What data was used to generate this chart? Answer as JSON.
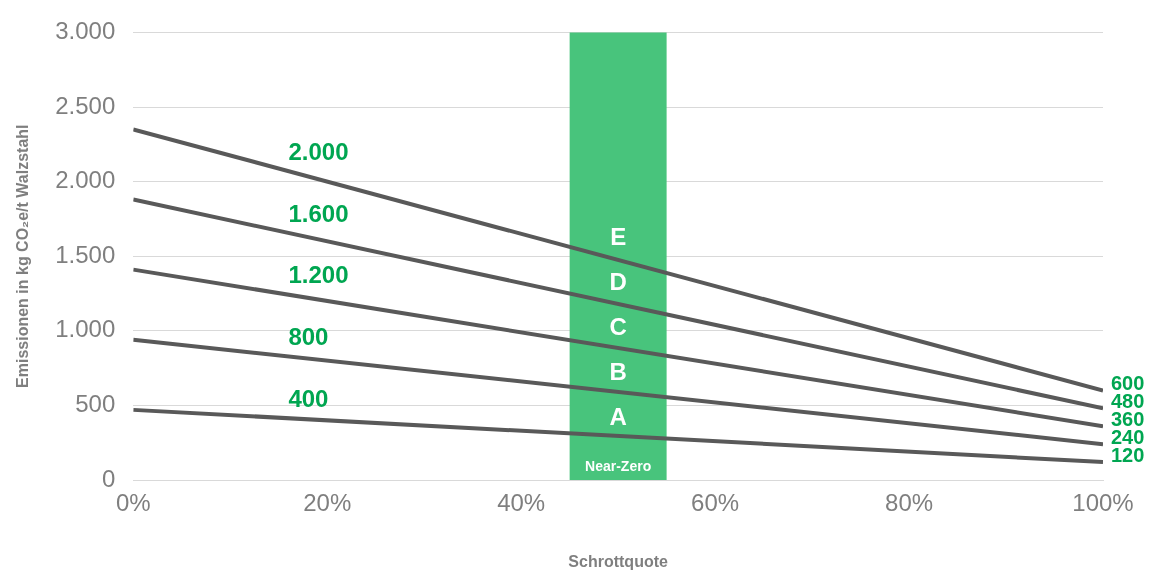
{
  "chart_data": {
    "type": "line",
    "xlabel": "Schrottquote",
    "ylabel": "Emissionen in kg CO₂e/t Walzstahl",
    "x": [
      0,
      100
    ],
    "series": [
      {
        "name": "2.000",
        "color": "#595959",
        "values": [
          2350,
          600
        ],
        "value_labels": [
          null,
          "600"
        ]
      },
      {
        "name": "1.600",
        "color": "#595959",
        "values": [
          1880,
          480
        ],
        "value_labels": [
          null,
          "480"
        ]
      },
      {
        "name": "1.200",
        "color": "#595959",
        "values": [
          1410,
          360
        ],
        "value_labels": [
          null,
          "360"
        ]
      },
      {
        "name": "800",
        "color": "#595959",
        "values": [
          940,
          240
        ],
        "value_labels": [
          null,
          "240"
        ]
      },
      {
        "name": "400",
        "color": "#595959",
        "values": [
          470,
          120
        ],
        "value_labels": [
          null,
          "120"
        ]
      }
    ],
    "xlim": [
      0,
      100
    ],
    "xticks": [
      {
        "value": 0,
        "label": "0%"
      },
      {
        "value": 20,
        "label": "20%"
      },
      {
        "value": 40,
        "label": "40%"
      },
      {
        "value": 60,
        "label": "60%"
      },
      {
        "value": 80,
        "label": "80%"
      },
      {
        "value": 100,
        "label": "100%"
      }
    ],
    "ylim": [
      0,
      3000
    ],
    "yticks": [
      {
        "value": 0,
        "label": "0"
      },
      {
        "value": 500,
        "label": "500"
      },
      {
        "value": 1000,
        "label": "1.000"
      },
      {
        "value": 1500,
        "label": "1.500"
      },
      {
        "value": 2000,
        "label": "2.000"
      },
      {
        "value": 2500,
        "label": "2.500"
      },
      {
        "value": 3000,
        "label": "3.000"
      }
    ],
    "bands": [
      {
        "axis": "x",
        "from": 45,
        "to": 55,
        "label": "Near-Zero",
        "color": "#48c47c"
      }
    ],
    "annotations": [
      "E",
      "D",
      "C",
      "B",
      "A"
    ],
    "grid": "y",
    "legend": false,
    "marker": "none",
    "line_style": "solid"
  }
}
